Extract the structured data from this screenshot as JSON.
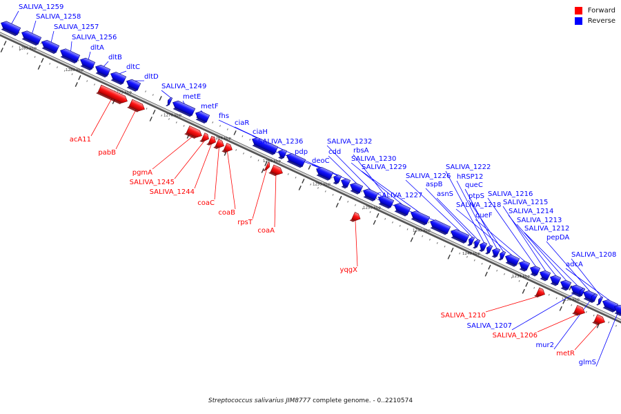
{
  "footer": {
    "organism": "Streptococcus salivarius JIM8777",
    "rest": " complete genome. - 0..2210574"
  },
  "legend": {
    "forward_label": "Forward",
    "reverse_label": "Reverse",
    "forward_color": "#ff0000",
    "reverse_color": "#0000ff"
  },
  "scale_labels": [
    "1285 kbp",
    "1280 kbp",
    "1275 kbp",
    "1270 kbp",
    "1265 kbp",
    "1260 kbp",
    "1255 kbp",
    "1250 kbp",
    "1245 kbp",
    "1240 kbp",
    "1235 kbp",
    "1230 kbp"
  ],
  "genes": [
    {
      "name": "SALIVA_1259",
      "strand": "reverse"
    },
    {
      "name": "SALIVA_1258",
      "strand": "reverse"
    },
    {
      "name": "SALIVA_1257",
      "strand": "reverse"
    },
    {
      "name": "SALIVA_1256",
      "strand": "reverse"
    },
    {
      "name": "dltA",
      "strand": "reverse"
    },
    {
      "name": "dltB",
      "strand": "reverse"
    },
    {
      "name": "dltC",
      "strand": "reverse"
    },
    {
      "name": "dltD",
      "strand": "reverse"
    },
    {
      "name": "SALIVA_1249",
      "strand": "reverse"
    },
    {
      "name": "metE",
      "strand": "reverse"
    },
    {
      "name": "metF",
      "strand": "reverse"
    },
    {
      "name": "fhs",
      "strand": "reverse"
    },
    {
      "name": "ciaR",
      "strand": "reverse"
    },
    {
      "name": "ciaH",
      "strand": "reverse"
    },
    {
      "name": "SALIVA_1236",
      "strand": "reverse"
    },
    {
      "name": "pdp",
      "strand": "reverse"
    },
    {
      "name": "deoC",
      "strand": "reverse"
    },
    {
      "name": "cdd",
      "strand": "reverse"
    },
    {
      "name": "SALIVA_1232",
      "strand": "reverse"
    },
    {
      "name": "rbsA",
      "strand": "reverse"
    },
    {
      "name": "SALIVA_1230",
      "strand": "reverse"
    },
    {
      "name": "SALIVA_1229",
      "strand": "reverse"
    },
    {
      "name": "SALIVA_1227",
      "strand": "reverse"
    },
    {
      "name": "SALIVA_1226",
      "strand": "reverse"
    },
    {
      "name": "aspB",
      "strand": "reverse"
    },
    {
      "name": "asnS",
      "strand": "reverse"
    },
    {
      "name": "SALIVA_1222",
      "strand": "reverse"
    },
    {
      "name": "hRSP12",
      "strand": "reverse"
    },
    {
      "name": "queC",
      "strand": "reverse"
    },
    {
      "name": "ptpS",
      "strand": "reverse"
    },
    {
      "name": "SALIVA_1218",
      "strand": "reverse"
    },
    {
      "name": "queF",
      "strand": "reverse"
    },
    {
      "name": "SALIVA_1216",
      "strand": "reverse"
    },
    {
      "name": "SALIVA_1215",
      "strand": "reverse"
    },
    {
      "name": "SALIVA_1214",
      "strand": "reverse"
    },
    {
      "name": "SALIVA_1213",
      "strand": "reverse"
    },
    {
      "name": "SALIVA_1212",
      "strand": "reverse"
    },
    {
      "name": "pepDA",
      "strand": "reverse"
    },
    {
      "name": "SALIVA_1208",
      "strand": "reverse"
    },
    {
      "name": "adcA",
      "strand": "reverse"
    },
    {
      "name": "acA11",
      "strand": "forward"
    },
    {
      "name": "pabB",
      "strand": "forward"
    },
    {
      "name": "pgmA",
      "strand": "forward"
    },
    {
      "name": "SALIVA_1245",
      "strand": "forward"
    },
    {
      "name": "SALIVA_1244",
      "strand": "forward"
    },
    {
      "name": "coaC",
      "strand": "forward"
    },
    {
      "name": "coaB",
      "strand": "forward"
    },
    {
      "name": "rpsT",
      "strand": "forward"
    },
    {
      "name": "coaA",
      "strand": "forward"
    },
    {
      "name": "yqgX",
      "strand": "forward"
    },
    {
      "name": "SALIVA_1210",
      "strand": "forward"
    },
    {
      "name": "SALIVA_1207",
      "strand": "reverse"
    },
    {
      "name": "SALIVA_1206",
      "strand": "forward"
    },
    {
      "name": "mur2",
      "strand": "reverse"
    },
    {
      "name": "metR",
      "strand": "forward"
    },
    {
      "name": "glmS",
      "strand": "reverse"
    }
  ]
}
